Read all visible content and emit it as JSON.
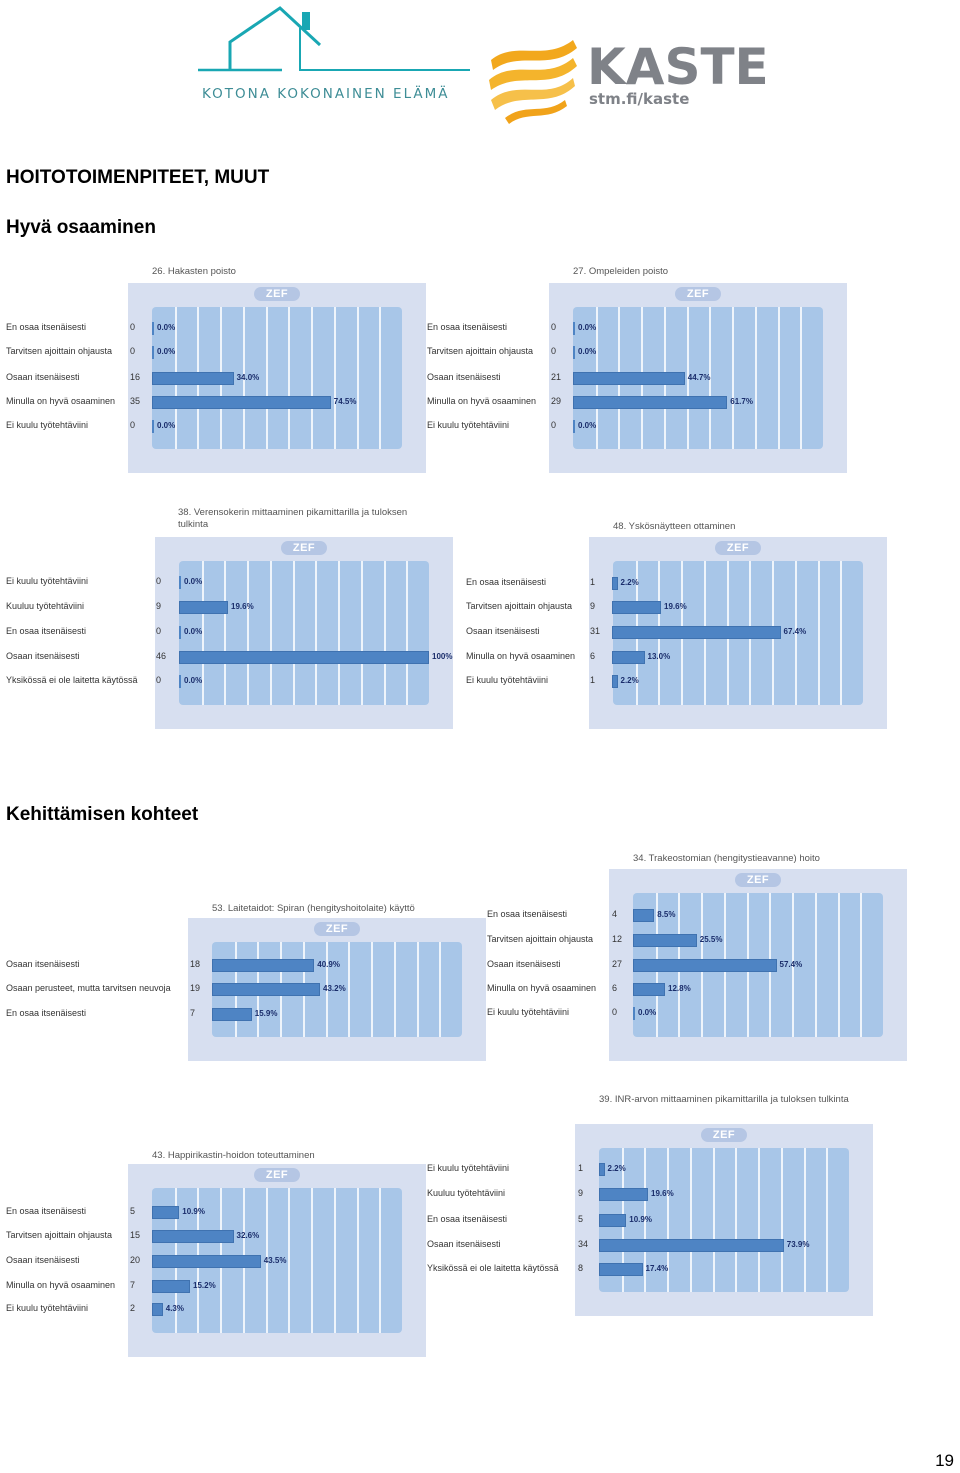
{
  "header": {
    "logo1_text": "KOTONA KOKONAINEN ELÄMÄ",
    "logo2_name": "KASTE",
    "logo2_url": "stm.fi/kaste",
    "colors": {
      "house": "#19a7b3",
      "kaste": "#7f8288",
      "waves": "#f2a81d"
    }
  },
  "headings": {
    "main": "HOITOTOIMENPITEET, MUUT",
    "good": "Hyvä osaaminen",
    "develop": "Kehittämisen kohteet"
  },
  "zef_label": "ZEF",
  "page_number": "19",
  "chart_data": [
    {
      "type": "bar",
      "title": "26. Hakasten poisto",
      "categories": [
        "En osaa itsenäisesti",
        "Tarvitsen ajoittain ohjausta",
        "Osaan itsenäisesti",
        "Minulla on hyvä osaaminen",
        "Ei kuulu työtehtäviini"
      ],
      "counts": [
        "0",
        "0",
        "16",
        "35",
        "0"
      ],
      "values": [
        0,
        0,
        34.0,
        74.5,
        0
      ],
      "labels": [
        "0.0%",
        "0.0%",
        "34.0%",
        "74.5%",
        "0.0%"
      ],
      "ylim": [
        0,
        100
      ]
    },
    {
      "type": "bar",
      "title": "27. Ompeleiden poisto",
      "categories": [
        "En osaa itsenäisesti",
        "Tarvitsen ajoittain ohjausta",
        "Osaan itsenäisesti",
        "Minulla on hyvä osaaminen",
        "Ei kuulu työtehtäviini"
      ],
      "counts": [
        "0",
        "0",
        "21",
        "29",
        "0"
      ],
      "values": [
        0,
        0,
        44.7,
        61.7,
        0
      ],
      "labels": [
        "0.0%",
        "0.0%",
        "44.7%",
        "61.7%",
        "0.0%"
      ],
      "ylim": [
        0,
        100
      ]
    },
    {
      "type": "bar",
      "title": "38. Verensokerin mittaaminen pikamittarilla ja tuloksen tulkinta",
      "categories": [
        "Ei  kuulu työtehtäviini",
        "Kuuluu työtehtäviini",
        "En osaa itsenäisesti",
        "Osaan itsenäisesti",
        "Yksikössä ei ole laitetta käytössä"
      ],
      "counts": [
        "0",
        "9",
        "0",
        "46",
        "0"
      ],
      "values": [
        0,
        19.6,
        0,
        100,
        0
      ],
      "labels": [
        "0.0%",
        "19.6%",
        "0.0%",
        "100%",
        "0.0%"
      ],
      "ylim": [
        0,
        100
      ]
    },
    {
      "type": "bar",
      "title": "48. Yskösnäytteen ottaminen",
      "categories": [
        "En osaa itsenäisesti",
        "Tarvitsen ajoittain ohjausta",
        "Osaan itsenäisesti",
        "Minulla on hyvä osaaminen",
        "Ei kuulu työtehtäviini"
      ],
      "counts": [
        "1",
        "9",
        "31",
        "6",
        "1"
      ],
      "values": [
        2.2,
        19.6,
        67.4,
        13.0,
        2.2
      ],
      "labels": [
        "2.2%",
        "19.6%",
        "67.4%",
        "13.0%",
        "2.2%"
      ],
      "ylim": [
        0,
        100
      ]
    },
    {
      "type": "bar",
      "title": "53. Laitetaidot: Spiran (hengityshoitolaite) käyttö",
      "categories": [
        "Osaan itsenäisesti",
        "Osaan perusteet, mutta tarvitsen neuvoja",
        "En osaa itsenäisesti"
      ],
      "counts": [
        "18",
        "19",
        "7"
      ],
      "values": [
        40.9,
        43.2,
        15.9
      ],
      "labels": [
        "40.9%",
        "43.2%",
        "15.9%"
      ],
      "ylim": [
        0,
        100
      ]
    },
    {
      "type": "bar",
      "title": "34. Trakeostomian (hengitystieavanne) hoito",
      "categories": [
        "En osaa itsenäisesti",
        "Tarvitsen ajoittain ohjausta",
        "Osaan itsenäisesti",
        "Minulla on hyvä osaaminen",
        "Ei kuulu työtehtäviini"
      ],
      "counts": [
        "4",
        "12",
        "27",
        "6",
        "0"
      ],
      "values": [
        8.5,
        25.5,
        57.4,
        12.8,
        0
      ],
      "labels": [
        "8.5%",
        "25.5%",
        "57.4%",
        "12.8%",
        "0.0%"
      ],
      "ylim": [
        0,
        100
      ]
    },
    {
      "type": "bar",
      "title": "39. INR-arvon mittaaminen pikamittarilla ja tuloksen tulkinta",
      "categories": [
        "Ei  kuulu työtehtäviini",
        "Kuuluu työtehtäviini",
        "En osaa itsenäisesti",
        "Osaan itsenäisesti",
        "Yksikössä ei ole laitetta käytössä"
      ],
      "counts": [
        "1",
        "9",
        "5",
        "34",
        "8"
      ],
      "values": [
        2.2,
        19.6,
        10.9,
        73.9,
        17.4
      ],
      "labels": [
        "2.2%",
        "19.6%",
        "10.9%",
        "73.9%",
        "17.4%"
      ],
      "ylim": [
        0,
        100
      ]
    },
    {
      "type": "bar",
      "title": "43. Happirikastin-hoidon toteuttaminen",
      "categories": [
        "En osaa itsenäisesti",
        "Tarvitsen ajoittain ohjausta",
        "Osaan itsenäisesti",
        "Minulla on hyvä osaaminen",
        "Ei kuulu työtehtäviini"
      ],
      "counts": [
        "5",
        "15",
        "20",
        "7",
        "2"
      ],
      "values": [
        10.9,
        32.6,
        43.5,
        15.2,
        4.3
      ],
      "labels": [
        "10.9%",
        "32.6%",
        "43.5%",
        "15.2%",
        "4.3%"
      ],
      "ylim": [
        0,
        100
      ]
    }
  ]
}
